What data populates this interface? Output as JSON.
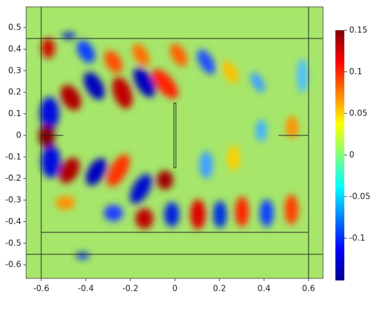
{
  "chart_data": {
    "type": "field",
    "xlim": [
      -0.668,
      0.665
    ],
    "ylim": [
      -0.663,
      0.596
    ],
    "xticks": [
      -0.6,
      -0.4,
      -0.2,
      0,
      0.2,
      0.4,
      0.6
    ],
    "yticks": [
      -0.6,
      -0.5,
      -0.4,
      -0.3,
      -0.2,
      -0.1,
      0,
      0.1,
      0.2,
      0.3,
      0.4,
      0.5
    ],
    "colormap": "jet",
    "clim": [
      -0.151,
      0.15
    ],
    "colorbar_ticks": [
      -0.1,
      -0.05,
      0,
      0.05,
      0.1,
      0.15
    ]
  }
}
